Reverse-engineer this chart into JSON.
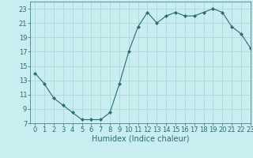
{
  "x": [
    0,
    1,
    2,
    3,
    4,
    5,
    6,
    7,
    8,
    9,
    10,
    11,
    12,
    13,
    14,
    15,
    16,
    17,
    18,
    19,
    20,
    21,
    22,
    23
  ],
  "y": [
    14.0,
    12.5,
    10.5,
    9.5,
    8.5,
    7.5,
    7.5,
    7.5,
    8.5,
    12.5,
    17.0,
    20.5,
    22.5,
    21.0,
    22.0,
    22.5,
    22.0,
    22.0,
    22.5,
    23.0,
    22.5,
    20.5,
    19.5,
    17.5
  ],
  "title": "",
  "xlabel": "Humidex (Indice chaleur)",
  "ylabel": "",
  "xlim": [
    -0.5,
    23
  ],
  "ylim": [
    7,
    24
  ],
  "yticks": [
    7,
    9,
    11,
    13,
    15,
    17,
    19,
    21,
    23
  ],
  "xticks": [
    0,
    1,
    2,
    3,
    4,
    5,
    6,
    7,
    8,
    9,
    10,
    11,
    12,
    13,
    14,
    15,
    16,
    17,
    18,
    19,
    20,
    21,
    22,
    23
  ],
  "line_color": "#2a6e6e",
  "marker": "D",
  "marker_size": 2.0,
  "bg_color": "#c8eef0",
  "grid_color": "#aad4d6",
  "axes_bg": "#c8eef0",
  "tick_fontsize": 6.0,
  "xlabel_fontsize": 7.0,
  "spine_color": "#2a6e6e"
}
